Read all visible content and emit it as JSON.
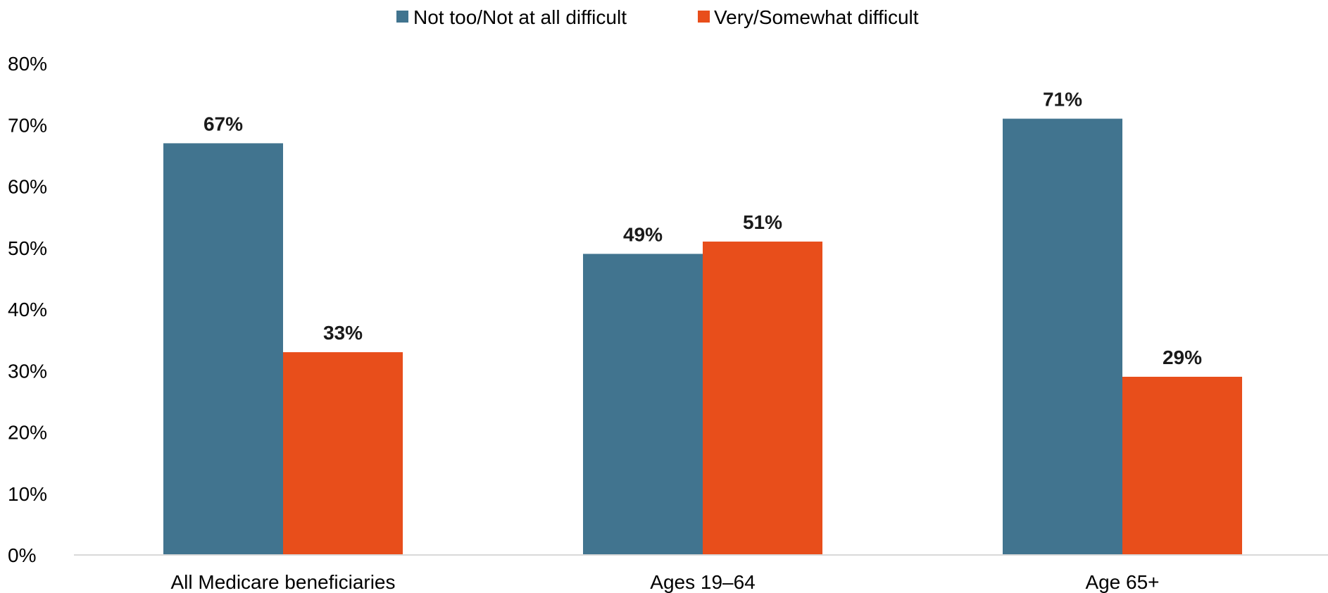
{
  "chart_data": {
    "type": "bar",
    "categories": [
      "All Medicare beneficiaries",
      "Ages 19–64",
      "Age 65+"
    ],
    "series": [
      {
        "name": "Not too/Not at all difficult",
        "color": "#41748f",
        "values": [
          67,
          49,
          71
        ],
        "labels": [
          "67%",
          "49%",
          "71%"
        ]
      },
      {
        "name": "Very/Somewhat difficult",
        "color": "#e84e1b",
        "values": [
          33,
          51,
          29
        ],
        "labels": [
          "33%",
          "51%",
          "29%"
        ]
      }
    ],
    "ylim": [
      0,
      80
    ],
    "yticks": [
      0,
      10,
      20,
      30,
      40,
      50,
      60,
      70,
      80
    ],
    "ytick_labels": [
      "0%",
      "10%",
      "20%",
      "30%",
      "40%",
      "50%",
      "60%",
      "70%",
      "80%"
    ],
    "grid": false,
    "legend_position": "top-center"
  }
}
